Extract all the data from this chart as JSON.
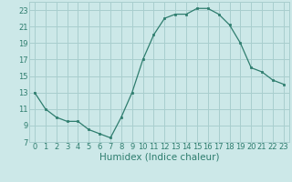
{
  "x": [
    0,
    1,
    2,
    3,
    4,
    5,
    6,
    7,
    8,
    9,
    10,
    11,
    12,
    13,
    14,
    15,
    16,
    17,
    18,
    19,
    20,
    21,
    22,
    23
  ],
  "y": [
    13,
    11,
    10,
    9.5,
    9.5,
    8.5,
    8,
    7.5,
    10,
    13,
    17,
    20,
    22,
    22.5,
    22.5,
    23.2,
    23.2,
    22.5,
    21.2,
    19,
    16,
    15.5,
    14.5,
    14
  ],
  "line_color": "#2e7d6e",
  "marker_color": "#2e7d6e",
  "bg_color": "#cce8e8",
  "grid_color": "#a8cece",
  "xlabel": "Humidex (Indice chaleur)",
  "xlabel_fontsize": 7.5,
  "tick_label_color": "#2e7d6e",
  "ylim": [
    7,
    24
  ],
  "xlim": [
    -0.5,
    23.5
  ],
  "yticks": [
    7,
    9,
    11,
    13,
    15,
    17,
    19,
    21,
    23
  ],
  "xticks": [
    0,
    1,
    2,
    3,
    4,
    5,
    6,
    7,
    8,
    9,
    10,
    11,
    12,
    13,
    14,
    15,
    16,
    17,
    18,
    19,
    20,
    21,
    22,
    23
  ],
  "tick_fontsize": 6.0
}
